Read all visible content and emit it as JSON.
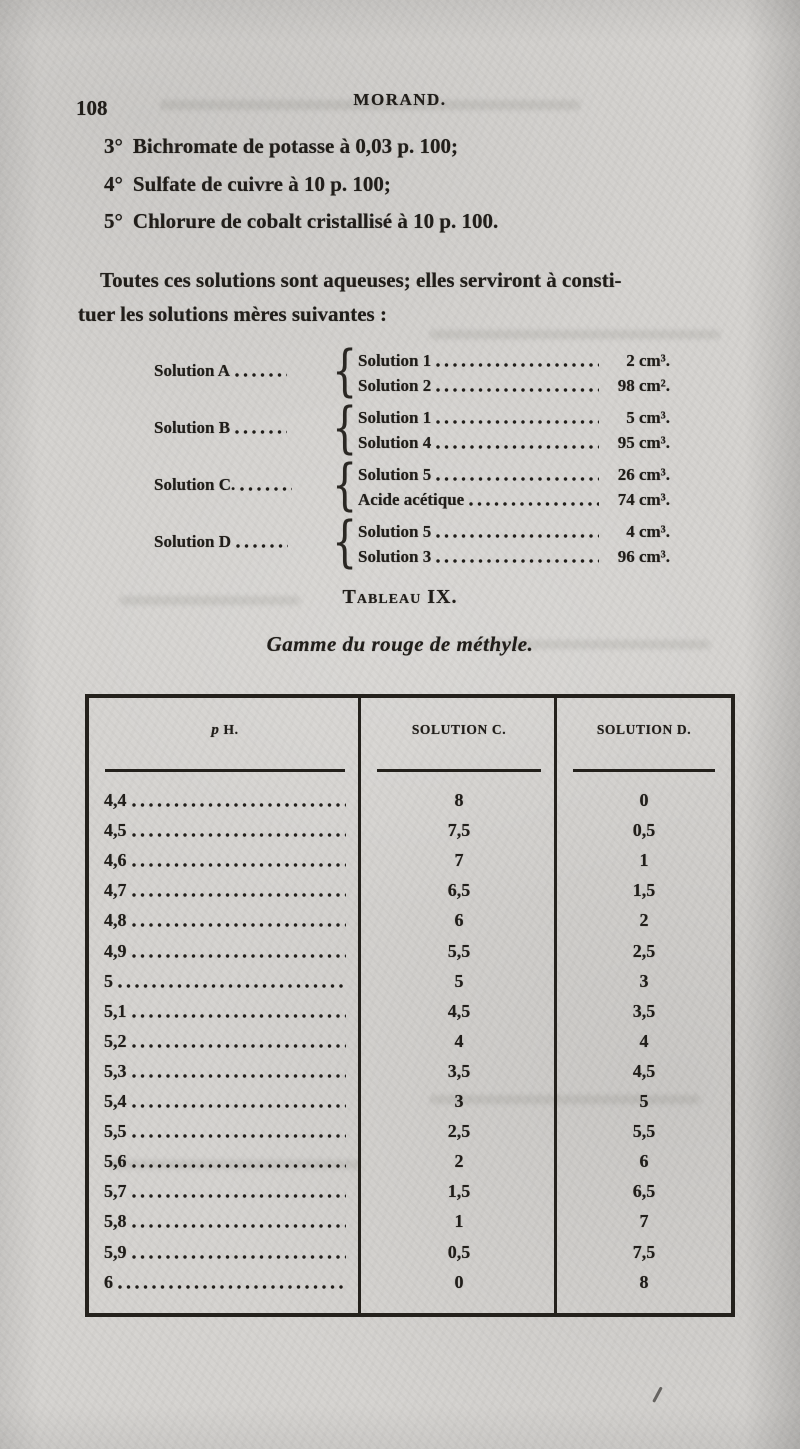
{
  "page": {
    "number": "108",
    "running_head": "MORAND."
  },
  "list_items": [
    {
      "marker": "3°",
      "text": "Bichromate de potasse à 0,03 p. 100;"
    },
    {
      "marker": "4°",
      "text": "Sulfate de cuivre à 10 p. 100;"
    },
    {
      "marker": "5°",
      "text": "Chlorure de cobalt cristallisé à 10 p. 100."
    }
  ],
  "paragraph": {
    "line1": "Toutes ces solutions sont aqueuses; elles serviront à consti-",
    "line2": "tuer les solutions mères suivantes :"
  },
  "mother_solutions": [
    {
      "label": "Solution A",
      "components": [
        {
          "name": "Solution 1",
          "value": "2 cm³."
        },
        {
          "name": "Solution 2",
          "value": "98 cm²."
        }
      ]
    },
    {
      "label": "Solution B",
      "components": [
        {
          "name": "Solution 1",
          "value": "5 cm³."
        },
        {
          "name": "Solution 4",
          "value": "95 cm³."
        }
      ]
    },
    {
      "label": "Solution C.",
      "components": [
        {
          "name": "Solution 5",
          "value": "26 cm³."
        },
        {
          "name": "Acide acétique",
          "value": "74 cm³."
        }
      ]
    },
    {
      "label": "Solution D",
      "components": [
        {
          "name": "Solution 5",
          "value": "4 cm³."
        },
        {
          "name": "Solution 3",
          "value": "96 cm³."
        }
      ]
    }
  ],
  "table": {
    "title": "Tableau IX.",
    "subtitle": "Gamme du rouge de méthyle.",
    "header": {
      "ph_symbol": "p",
      "ph_rest": "H.",
      "col_c": "SOLUTION C.",
      "col_d": "SOLUTION D."
    },
    "rows": [
      [
        "4,4",
        "8",
        "0"
      ],
      [
        "4,5",
        "7,5",
        "0,5"
      ],
      [
        "4,6",
        "7",
        "1"
      ],
      [
        "4,7",
        "6,5",
        "1,5"
      ],
      [
        "4,8",
        "6",
        "2"
      ],
      [
        "4,9",
        "5,5",
        "2,5"
      ],
      [
        "5",
        "5",
        "3"
      ],
      [
        "5,1",
        "4,5",
        "3,5"
      ],
      [
        "5,2",
        "4",
        "4"
      ],
      [
        "5,3",
        "3,5",
        "4,5"
      ],
      [
        "5,4",
        "3",
        "5"
      ],
      [
        "5,5",
        "2,5",
        "5,5"
      ],
      [
        "5,6",
        "2",
        "6"
      ],
      [
        "5,7",
        "1,5",
        "6,5"
      ],
      [
        "5,8",
        "1",
        "7"
      ],
      [
        "5,9",
        "0,5",
        "7,5"
      ],
      [
        "6",
        "0",
        "8"
      ]
    ]
  },
  "colors": {
    "paper": "#d5d3d0",
    "ink": "#211e1a"
  }
}
